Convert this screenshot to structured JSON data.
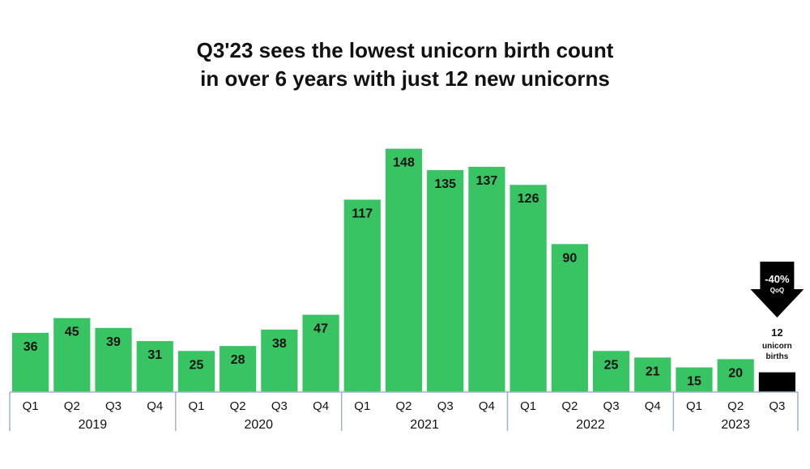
{
  "chart_data": {
    "type": "bar",
    "title_line1": "Q3'23 sees the lowest unicorn birth count",
    "title_line2": "in over 6 years with just 12 new unicorns",
    "categories": [
      "Q1",
      "Q2",
      "Q3",
      "Q4",
      "Q1",
      "Q2",
      "Q3",
      "Q4",
      "Q1",
      "Q2",
      "Q3",
      "Q4",
      "Q1",
      "Q2",
      "Q3",
      "Q4",
      "Q1",
      "Q2",
      "Q3"
    ],
    "values": [
      36,
      45,
      39,
      31,
      25,
      28,
      38,
      47,
      117,
      148,
      135,
      137,
      126,
      90,
      25,
      21,
      15,
      20,
      12
    ],
    "years": [
      {
        "label": "2019",
        "count": 4
      },
      {
        "label": "2020",
        "count": 4
      },
      {
        "label": "2021",
        "count": 4
      },
      {
        "label": "2022",
        "count": 4
      },
      {
        "label": "2023",
        "count": 3
      }
    ],
    "ylim": [
      0,
      160
    ],
    "grid": false,
    "colors": {
      "bar": "#39C463",
      "highlight": "#000000",
      "axis": "#9fb3c8"
    },
    "annotation": {
      "change": "-40%",
      "change_sub": "QoQ",
      "count": "12",
      "line2": "unicorn",
      "line3": "births"
    }
  }
}
